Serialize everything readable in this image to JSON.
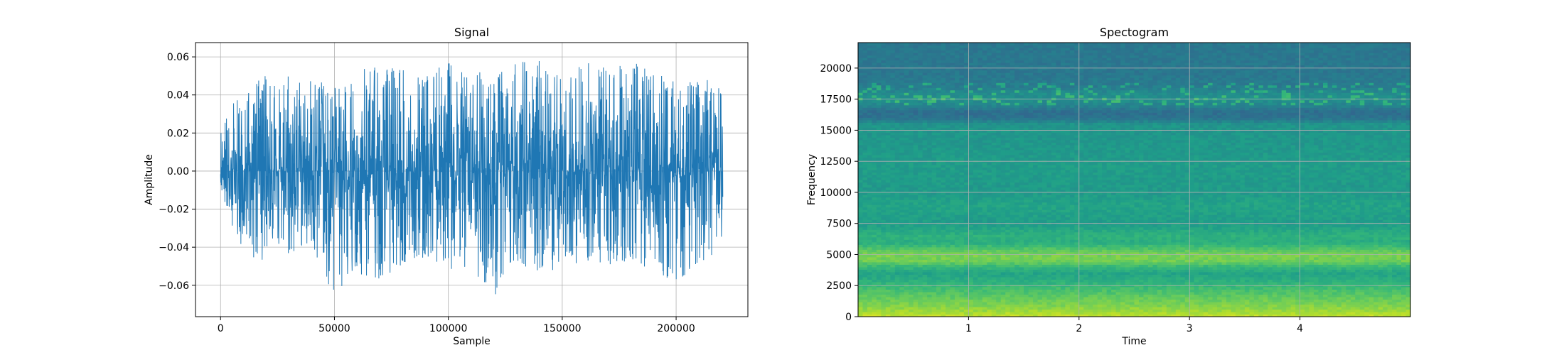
{
  "chart_data": [
    {
      "type": "line",
      "title": "Signal",
      "xlabel": "Sample",
      "ylabel": "Amplitude",
      "xlim": [
        -11000,
        231500
      ],
      "ylim": [
        -0.0765,
        0.0675
      ],
      "grid": true,
      "color": "#1f77b4",
      "x_ticks": [
        0,
        50000,
        100000,
        150000,
        200000
      ],
      "x_tick_labels": [
        "0",
        "50000",
        "100000",
        "150000",
        "200000"
      ],
      "y_ticks": [
        -0.06,
        -0.04,
        -0.02,
        0.0,
        0.02,
        0.04,
        0.06
      ],
      "y_tick_labels": [
        "−0.06",
        "−0.04",
        "−0.02",
        "0.00",
        "0.02",
        "0.04",
        "0.06"
      ],
      "sample_count": 220500,
      "envelope_x": [
        0,
        10000,
        20000,
        30000,
        40000,
        50000,
        60000,
        70000,
        80000,
        90000,
        100000,
        110000,
        120000,
        130000,
        140000,
        150000,
        160000,
        170000,
        180000,
        190000,
        200000,
        210000,
        220000
      ],
      "envelope_max": [
        0.024,
        0.046,
        0.051,
        0.05,
        0.05,
        0.044,
        0.052,
        0.058,
        0.054,
        0.05,
        0.058,
        0.053,
        0.051,
        0.06,
        0.06,
        0.052,
        0.057,
        0.055,
        0.058,
        0.053,
        0.047,
        0.049,
        0.048
      ],
      "envelope_min": [
        -0.011,
        -0.049,
        -0.047,
        -0.046,
        -0.04,
        -0.068,
        -0.055,
        -0.057,
        -0.049,
        -0.047,
        -0.052,
        -0.05,
        -0.069,
        -0.051,
        -0.055,
        -0.051,
        -0.047,
        -0.05,
        -0.047,
        -0.053,
        -0.059,
        -0.048,
        -0.046
      ]
    },
    {
      "type": "heatmap",
      "title": "Spectogram",
      "xlabel": "Time",
      "ylabel": "Frequency",
      "xlim": [
        0,
        5
      ],
      "ylim": [
        0,
        22050
      ],
      "grid": true,
      "colormap": "viridis",
      "x_ticks": [
        1,
        2,
        3,
        4
      ],
      "x_tick_labels": [
        "1",
        "2",
        "3",
        "4"
      ],
      "y_ticks": [
        0,
        2500,
        5000,
        7500,
        10000,
        12500,
        15000,
        17500,
        20000
      ],
      "y_tick_labels": [
        "0",
        "2500",
        "5000",
        "7500",
        "10000",
        "12500",
        "15000",
        "17500",
        "20000"
      ],
      "band_freqs": [
        0,
        500,
        1000,
        1500,
        2000,
        3000,
        3500,
        4000,
        4500,
        5000,
        5500,
        6000,
        6500,
        7500,
        9000,
        10000,
        12000,
        14000,
        15500,
        16000,
        16500,
        17000,
        17500,
        18000,
        18500,
        19500,
        22050
      ],
      "band_levels": [
        0.92,
        0.85,
        0.8,
        0.76,
        0.72,
        0.62,
        0.58,
        0.66,
        0.78,
        0.8,
        0.72,
        0.62,
        0.64,
        0.55,
        0.58,
        0.54,
        0.55,
        0.53,
        0.52,
        0.38,
        0.36,
        0.45,
        0.5,
        0.48,
        0.42,
        0.4,
        0.4
      ]
    }
  ]
}
